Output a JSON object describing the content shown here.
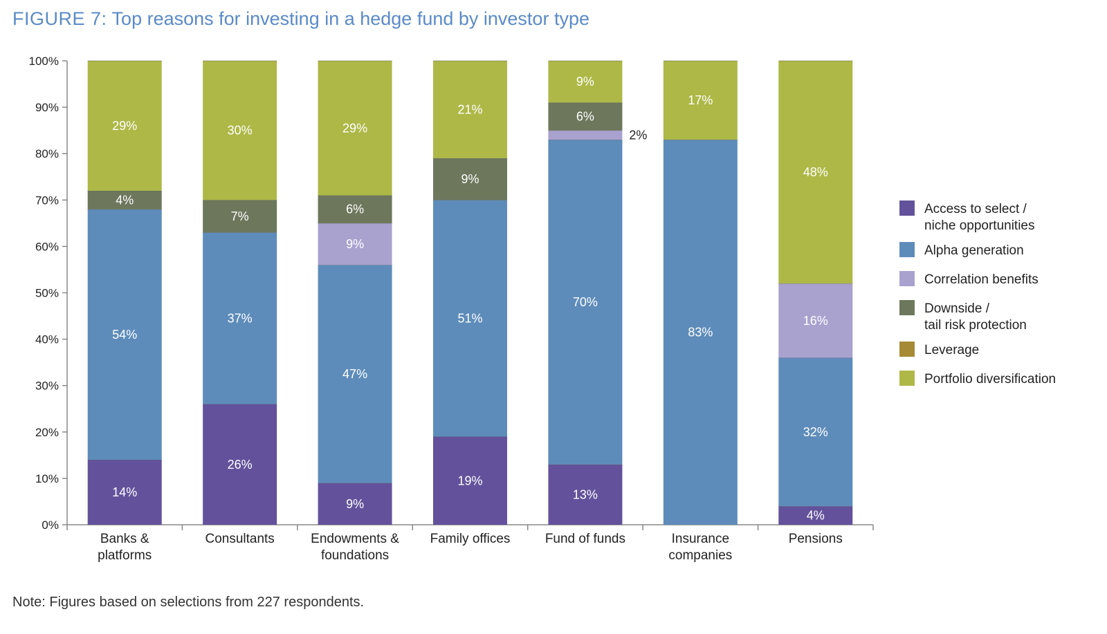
{
  "title": {
    "label": "FIGURE 7:",
    "text": "Top reasons for investing in a hedge fund by investor type"
  },
  "note": "Note: Figures based on selections from 227 respondents.",
  "chart_data": {
    "type": "bar",
    "stacked": true,
    "title": "",
    "xlabel": "",
    "ylabel": "",
    "ylim": [
      0,
      100
    ],
    "y_ticks": [
      "0%",
      "10%",
      "20%",
      "30%",
      "40%",
      "50%",
      "60%",
      "70%",
      "80%",
      "90%",
      "100%"
    ],
    "categories": [
      [
        "Banks &",
        "platforms"
      ],
      [
        "Consultants"
      ],
      [
        "Endowments &",
        "foundations"
      ],
      [
        "Family offices"
      ],
      [
        "Fund of funds"
      ],
      [
        "Insurance",
        "companies"
      ],
      [
        "Pensions"
      ]
    ],
    "series": [
      {
        "name": [
          "Access to select /",
          "niche opportunities"
        ],
        "color": "#63529b",
        "values": [
          14,
          26,
          9,
          19,
          13,
          0,
          4
        ]
      },
      {
        "name": [
          "Alpha generation"
        ],
        "color": "#5e8cba",
        "values": [
          54,
          37,
          47,
          51,
          70,
          83,
          32
        ]
      },
      {
        "name": [
          "Correlation benefits"
        ],
        "color": "#a9a2cf",
        "values": [
          0,
          0,
          9,
          0,
          2,
          0,
          16
        ]
      },
      {
        "name": [
          "Downside /",
          "tail risk protection"
        ],
        "color": "#6d775c",
        "values": [
          4,
          7,
          6,
          9,
          6,
          0,
          0
        ]
      },
      {
        "name": [
          "Leverage"
        ],
        "color": "#a68a36",
        "values": [
          0,
          0,
          0,
          0,
          0,
          0,
          0
        ]
      },
      {
        "name": [
          "Portfolio diversification"
        ],
        "color": "#aeb847",
        "values": [
          29,
          30,
          29,
          21,
          9,
          17,
          48
        ]
      }
    ],
    "data_labels": [
      [
        "14%",
        "54%",
        "",
        "4%",
        "",
        "29%"
      ],
      [
        "26%",
        "37%",
        "",
        "7%",
        "",
        "30%"
      ],
      [
        "9%",
        "47%",
        "9%",
        "6%",
        "",
        "29%"
      ],
      [
        "19%",
        "51%",
        "",
        "9%",
        "",
        "21%"
      ],
      [
        "13%",
        "70%",
        "2%",
        "6%",
        "",
        "9%"
      ],
      [
        "",
        "83%",
        "",
        "",
        "",
        "17%"
      ],
      [
        "4%",
        "32%",
        "16%",
        "",
        "",
        "48%"
      ]
    ],
    "legend_position": "right",
    "grid": false
  }
}
